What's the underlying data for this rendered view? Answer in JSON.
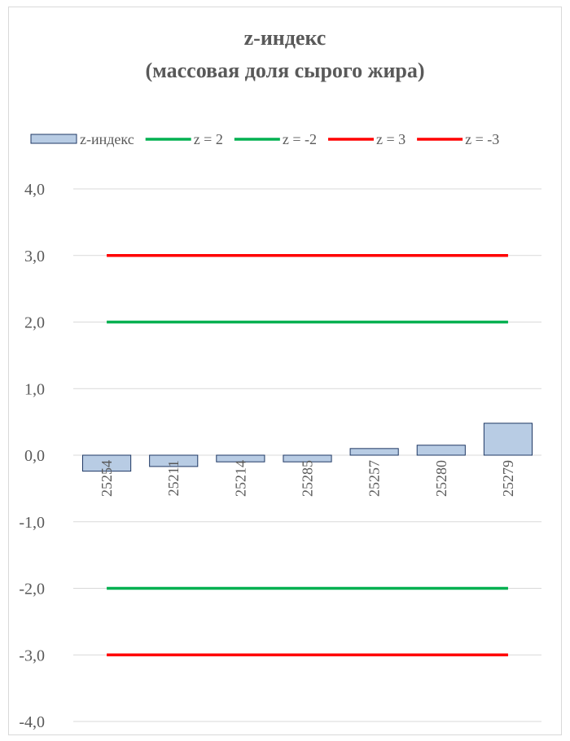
{
  "chart_data": {
    "type": "bar",
    "title": "z-индекс",
    "subtitle": "(массовая доля сырого жира)",
    "categories": [
      "25254",
      "25211",
      "25214",
      "25285",
      "25257",
      "25280",
      "25279"
    ],
    "series": [
      {
        "name": "z-индекс",
        "kind": "bar",
        "values": [
          -0.24,
          -0.17,
          -0.1,
          -0.1,
          0.1,
          0.15,
          0.48
        ],
        "color": "#b8cce4",
        "border": "#1f3864"
      }
    ],
    "reference_lines": [
      {
        "name": "z = 2",
        "value": 2,
        "color": "#00b050"
      },
      {
        "name": "z = -2",
        "value": -2,
        "color": "#00b050"
      },
      {
        "name": "z = 3",
        "value": 3,
        "color": "#ff0000"
      },
      {
        "name": "z = -3",
        "value": -3,
        "color": "#ff0000"
      }
    ],
    "ylim": [
      -4,
      4
    ],
    "yticks": [
      "4,0",
      "3,0",
      "2,0",
      "1,0",
      "0,0",
      "-1,0",
      "-2,0",
      "-3,0",
      "-4,0"
    ],
    "ytick_values": [
      4,
      3,
      2,
      1,
      0,
      -1,
      -2,
      -3,
      -4
    ],
    "grid": true,
    "legend_position": "top",
    "xlabel": "",
    "ylabel": ""
  }
}
